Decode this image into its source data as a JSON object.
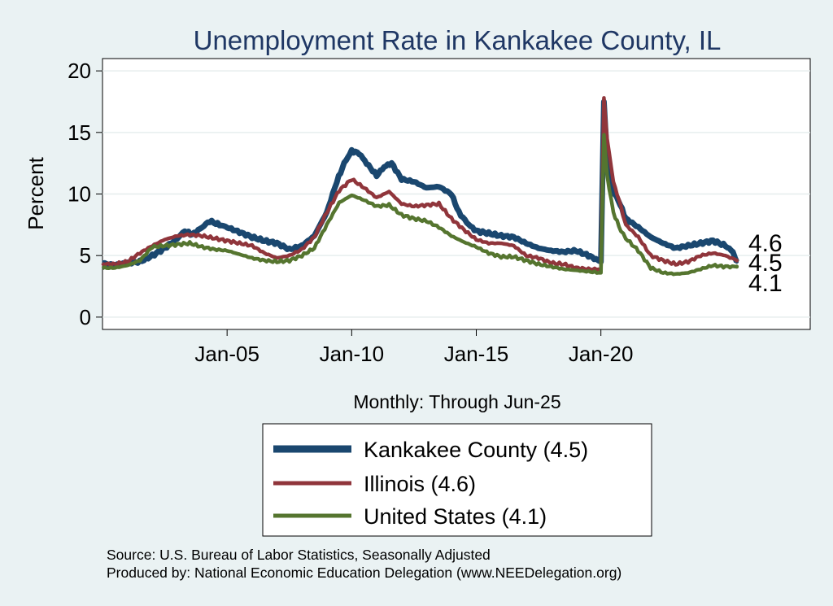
{
  "chart_data": {
    "type": "line",
    "title": "Unemployment Rate in Kankakee  County, IL",
    "ylabel": "Percent",
    "xlabel": "Monthly: Through Jun-25",
    "xlim": [
      2000.0,
      2028.4
    ],
    "ylim": [
      -1.0,
      21.0
    ],
    "x_ticks": [
      2005,
      2010,
      2015,
      2020
    ],
    "x_tick_labels": [
      "Jan-05",
      "Jan-10",
      "Jan-15",
      "Jan-20"
    ],
    "y_ticks": [
      0,
      5,
      10,
      15,
      20
    ],
    "y_tick_labels": [
      "0",
      "5",
      "10",
      "15",
      "20"
    ],
    "grid": true,
    "end_labels": [
      "4.6",
      "4.5",
      "4.1"
    ],
    "series": [
      {
        "name": "Kankakee  County",
        "legend_label": "Kankakee  County (4.5)",
        "color": "#1a476f",
        "last": 4.5,
        "points": [
          [
            2000.0,
            4.4
          ],
          [
            2000.5,
            4.2
          ],
          [
            2001.0,
            4.4
          ],
          [
            2001.5,
            4.5
          ],
          [
            2002.0,
            5.0
          ],
          [
            2002.5,
            5.6
          ],
          [
            2003.0,
            6.4
          ],
          [
            2003.3,
            7.0
          ],
          [
            2003.6,
            6.7
          ],
          [
            2004.0,
            7.3
          ],
          [
            2004.3,
            7.8
          ],
          [
            2004.7,
            7.5
          ],
          [
            2005.0,
            7.3
          ],
          [
            2005.5,
            6.9
          ],
          [
            2006.0,
            6.5
          ],
          [
            2006.5,
            6.2
          ],
          [
            2007.0,
            6.0
          ],
          [
            2007.5,
            5.5
          ],
          [
            2008.0,
            5.8
          ],
          [
            2008.5,
            6.6
          ],
          [
            2009.0,
            8.5
          ],
          [
            2009.4,
            11.0
          ],
          [
            2009.7,
            12.5
          ],
          [
            2010.0,
            13.5
          ],
          [
            2010.3,
            13.3
          ],
          [
            2010.6,
            12.5
          ],
          [
            2011.0,
            11.5
          ],
          [
            2011.3,
            12.2
          ],
          [
            2011.6,
            12.5
          ],
          [
            2012.0,
            11.2
          ],
          [
            2012.5,
            11.0
          ],
          [
            2013.0,
            10.5
          ],
          [
            2013.5,
            10.6
          ],
          [
            2014.0,
            10.0
          ],
          [
            2014.3,
            8.5
          ],
          [
            2014.7,
            7.5
          ],
          [
            2015.0,
            7.0
          ],
          [
            2015.5,
            6.8
          ],
          [
            2016.0,
            6.6
          ],
          [
            2016.5,
            6.5
          ],
          [
            2017.0,
            6.0
          ],
          [
            2017.5,
            5.6
          ],
          [
            2018.0,
            5.4
          ],
          [
            2018.5,
            5.3
          ],
          [
            2019.0,
            5.4
          ],
          [
            2019.5,
            5.0
          ],
          [
            2019.8,
            4.7
          ],
          [
            2020.0,
            4.5
          ],
          [
            2020.12,
            17.5
          ],
          [
            2020.25,
            13.0
          ],
          [
            2020.4,
            10.5
          ],
          [
            2020.7,
            9.5
          ],
          [
            2021.0,
            8.0
          ],
          [
            2021.5,
            7.3
          ],
          [
            2022.0,
            6.5
          ],
          [
            2022.5,
            6.0
          ],
          [
            2023.0,
            5.6
          ],
          [
            2023.5,
            5.8
          ],
          [
            2024.0,
            6.0
          ],
          [
            2024.5,
            6.2
          ],
          [
            2025.0,
            5.8
          ],
          [
            2025.3,
            5.3
          ],
          [
            2025.45,
            4.5
          ]
        ]
      },
      {
        "name": "Illinois",
        "legend_label": "Illinois (4.6)",
        "color": "#90353b",
        "last": 4.6,
        "points": [
          [
            2000.0,
            4.3
          ],
          [
            2000.5,
            4.3
          ],
          [
            2001.0,
            4.5
          ],
          [
            2001.5,
            5.2
          ],
          [
            2002.0,
            5.8
          ],
          [
            2002.5,
            6.3
          ],
          [
            2003.0,
            6.6
          ],
          [
            2003.5,
            6.7
          ],
          [
            2004.0,
            6.6
          ],
          [
            2004.5,
            6.4
          ],
          [
            2005.0,
            6.2
          ],
          [
            2005.5,
            6.0
          ],
          [
            2006.0,
            5.8
          ],
          [
            2006.5,
            5.2
          ],
          [
            2007.0,
            4.8
          ],
          [
            2007.5,
            5.0
          ],
          [
            2008.0,
            5.5
          ],
          [
            2008.5,
            6.5
          ],
          [
            2009.0,
            8.5
          ],
          [
            2009.5,
            10.3
          ],
          [
            2010.0,
            11.2
          ],
          [
            2010.5,
            10.5
          ],
          [
            2011.0,
            9.7
          ],
          [
            2011.5,
            10.2
          ],
          [
            2012.0,
            9.2
          ],
          [
            2012.5,
            9.0
          ],
          [
            2013.0,
            9.1
          ],
          [
            2013.5,
            9.2
          ],
          [
            2014.0,
            8.0
          ],
          [
            2014.5,
            7.1
          ],
          [
            2015.0,
            6.3
          ],
          [
            2015.5,
            6.0
          ],
          [
            2016.0,
            6.0
          ],
          [
            2016.5,
            5.8
          ],
          [
            2017.0,
            5.0
          ],
          [
            2017.5,
            4.8
          ],
          [
            2018.0,
            4.4
          ],
          [
            2018.5,
            4.3
          ],
          [
            2019.0,
            4.0
          ],
          [
            2019.5,
            3.9
          ],
          [
            2020.0,
            3.9
          ],
          [
            2020.12,
            17.8
          ],
          [
            2020.25,
            14.5
          ],
          [
            2020.5,
            11.0
          ],
          [
            2020.8,
            9.0
          ],
          [
            2021.0,
            7.5
          ],
          [
            2021.5,
            6.5
          ],
          [
            2022.0,
            5.0
          ],
          [
            2022.5,
            4.6
          ],
          [
            2023.0,
            4.3
          ],
          [
            2023.5,
            4.5
          ],
          [
            2024.0,
            5.0
          ],
          [
            2024.5,
            5.2
          ],
          [
            2025.0,
            5.0
          ],
          [
            2025.45,
            4.6
          ]
        ]
      },
      {
        "name": "United States",
        "legend_label": "United States (4.1)",
        "color": "#55752f",
        "last": 4.1,
        "points": [
          [
            2000.0,
            4.0
          ],
          [
            2000.5,
            4.0
          ],
          [
            2001.0,
            4.2
          ],
          [
            2001.5,
            4.6
          ],
          [
            2002.0,
            5.7
          ],
          [
            2002.5,
            5.8
          ],
          [
            2003.0,
            5.9
          ],
          [
            2003.5,
            6.0
          ],
          [
            2004.0,
            5.7
          ],
          [
            2004.5,
            5.5
          ],
          [
            2005.0,
            5.4
          ],
          [
            2005.5,
            5.1
          ],
          [
            2006.0,
            4.8
          ],
          [
            2006.5,
            4.6
          ],
          [
            2007.0,
            4.5
          ],
          [
            2007.5,
            4.6
          ],
          [
            2008.0,
            5.0
          ],
          [
            2008.5,
            5.6
          ],
          [
            2009.0,
            7.5
          ],
          [
            2009.5,
            9.3
          ],
          [
            2010.0,
            9.9
          ],
          [
            2010.5,
            9.5
          ],
          [
            2011.0,
            9.0
          ],
          [
            2011.5,
            9.1
          ],
          [
            2012.0,
            8.3
          ],
          [
            2012.5,
            8.0
          ],
          [
            2013.0,
            7.8
          ],
          [
            2013.5,
            7.3
          ],
          [
            2014.0,
            6.6
          ],
          [
            2014.5,
            6.1
          ],
          [
            2015.0,
            5.7
          ],
          [
            2015.5,
            5.2
          ],
          [
            2016.0,
            4.9
          ],
          [
            2016.5,
            4.9
          ],
          [
            2017.0,
            4.6
          ],
          [
            2017.5,
            4.3
          ],
          [
            2018.0,
            4.1
          ],
          [
            2018.5,
            3.9
          ],
          [
            2019.0,
            3.8
          ],
          [
            2019.5,
            3.7
          ],
          [
            2020.0,
            3.6
          ],
          [
            2020.12,
            14.8
          ],
          [
            2020.25,
            11.5
          ],
          [
            2020.5,
            8.5
          ],
          [
            2020.8,
            7.0
          ],
          [
            2021.0,
            6.4
          ],
          [
            2021.5,
            5.4
          ],
          [
            2022.0,
            4.0
          ],
          [
            2022.5,
            3.6
          ],
          [
            2023.0,
            3.5
          ],
          [
            2023.5,
            3.6
          ],
          [
            2024.0,
            3.9
          ],
          [
            2024.5,
            4.2
          ],
          [
            2025.0,
            4.1
          ],
          [
            2025.45,
            4.1
          ]
        ]
      }
    ]
  },
  "source_line": "Source: U.S. Bureau of Labor Statistics, Seasonally Adjusted",
  "produced_line": "Produced by: National Economic Education Delegation (www.NEEDelegation.org)"
}
